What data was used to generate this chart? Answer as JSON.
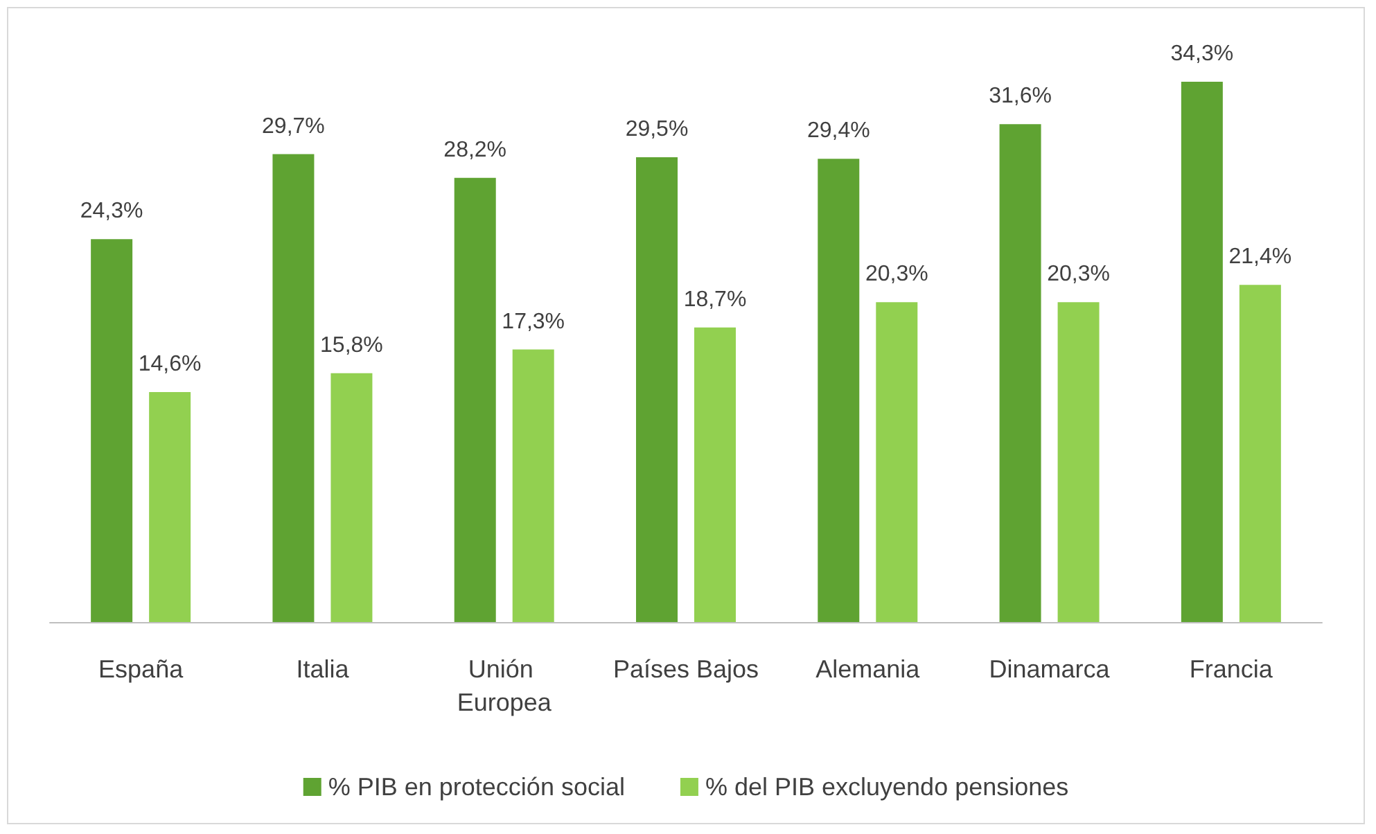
{
  "chart_data": {
    "type": "bar",
    "categories": [
      "España",
      "Italia",
      "Unión Europea",
      "Países Bajos",
      "Alemania",
      "Dinamarca",
      "Francia"
    ],
    "series": [
      {
        "name": "% PIB en protección social",
        "color": "#5fa332",
        "values": [
          24.3,
          29.7,
          28.2,
          29.5,
          29.4,
          31.6,
          34.3
        ],
        "value_labels": [
          "24,3%",
          "29,7%",
          "28,2%",
          "29,5%",
          "29,4%",
          "31,6%",
          "34,3%"
        ]
      },
      {
        "name": "% del PIB excluyendo pensiones",
        "color": "#92d050",
        "values": [
          14.6,
          15.8,
          17.3,
          18.7,
          20.3,
          20.3,
          21.4
        ],
        "value_labels": [
          "14,6%",
          "15,8%",
          "17,3%",
          "18,7%",
          "20,3%",
          "20,3%",
          "21,4%"
        ]
      }
    ],
    "legend": "bottom"
  }
}
